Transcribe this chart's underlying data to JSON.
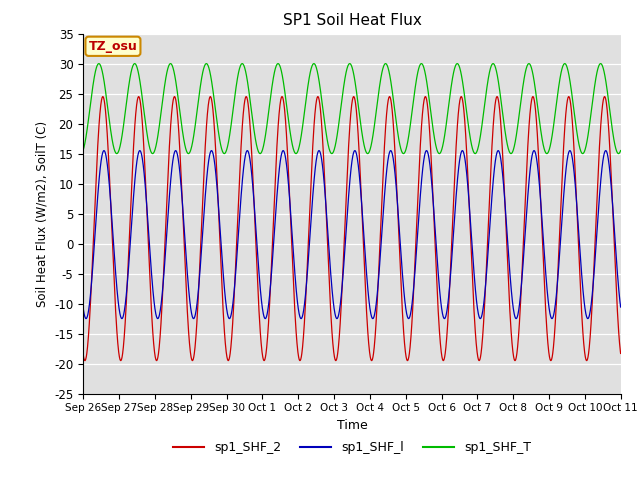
{
  "title": "SP1 Soil Heat Flux",
  "xlabel": "Time",
  "ylabel": "Soil Heat Flux (W/m2), SoilT (C)",
  "ylim": [
    -25,
    35
  ],
  "xtick_labels": [
    "Sep 26",
    "Sep 27",
    "Sep 28",
    "Sep 29",
    "Sep 30",
    "Oct 1",
    "Oct 2",
    "Oct 3",
    "Oct 4",
    "Oct 5",
    "Oct 6",
    "Oct 7",
    "Oct 8",
    "Oct 9",
    "Oct 10",
    "Oct 11"
  ],
  "ytick_values": [
    -25,
    -20,
    -15,
    -10,
    -5,
    0,
    5,
    10,
    15,
    20,
    25,
    30,
    35
  ],
  "color_shf2": "#cc0000",
  "color_shf1": "#0000bb",
  "color_shft": "#00bb00",
  "bg_color": "#e0e0e0",
  "annotation_text": "TZ_osu",
  "annotation_bg": "#ffffcc",
  "annotation_border": "#cc8800",
  "annotation_text_color": "#bb0000",
  "legend_labels": [
    "sp1_SHF_2",
    "sp1_SHF_l",
    "sp1_SHF_T"
  ],
  "n_days": 15.0,
  "dt": 0.005
}
